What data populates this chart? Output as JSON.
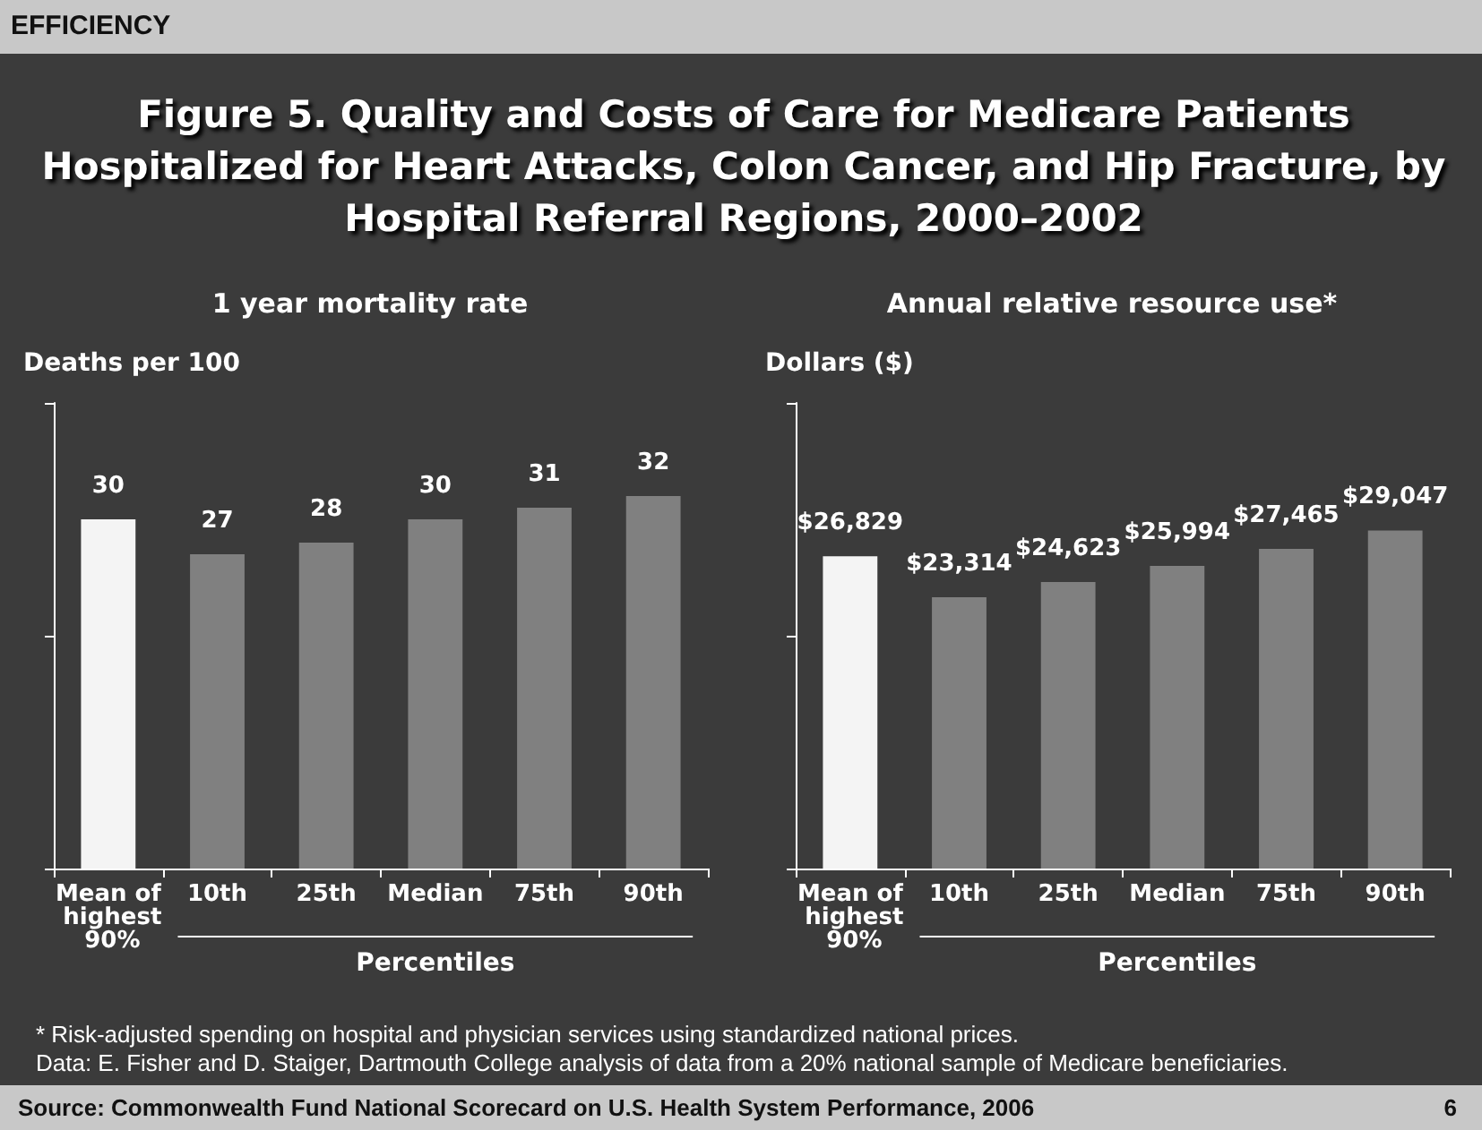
{
  "chart_data": [
    {
      "type": "bar",
      "title": "Figure 5. Quality and Costs of Care for Medicare Patients Hospitalized for Heart Attacks, Colon Cancer, and Hip Fracture, by Hospital Referral Regions, 2000–2002",
      "subtitle": "1 year mortality rate",
      "ylabel": "Deaths per 100",
      "xlabel": "Percentiles",
      "categories": [
        "Mean of highest 90%",
        "10th",
        "25th",
        "Median",
        "75th",
        "90th"
      ],
      "values": [
        30,
        27,
        28,
        30,
        31,
        32
      ],
      "colors": [
        "#f4f4f4",
        "#808080",
        "#808080",
        "#808080",
        "#808080",
        "#808080"
      ],
      "ylim": [
        0,
        40
      ],
      "yticks": [
        {
          "value": 0,
          "label": null
        },
        {
          "value": 20,
          "label": null
        },
        {
          "value": 40,
          "label": null
        }
      ],
      "tick_labels": "x",
      "grid": false,
      "data_labels": true,
      "annotations": [
        "EFFICIENCY",
        "* Risk-adjusted spending on hospital and physician services using standardized national prices.",
        "Data: E. Fisher and D. Staiger, Dartmouth College analysis of data from a 20% national sample of Medicare beneficiaries.",
        "Source: Commonwealth Fund National Scorecard on U.S. Health System Performance, 2006",
        "6"
      ]
    },
    {
      "type": "bar",
      "title": "Annual relative resource use*",
      "ylabel": "Dollars ($)",
      "xlabel": "Percentiles",
      "categories": [
        "Mean of highest 90%",
        "10th",
        "25th",
        "Median",
        "75th",
        "90th"
      ],
      "values": [
        26829,
        23314,
        24623,
        25994,
        27465,
        29047
      ],
      "value_labels": [
        "$26,829",
        "$23,314",
        "$24,623",
        "$25,994",
        "$27,465",
        "$29,047"
      ],
      "colors": [
        "#f4f4f4",
        "#808080",
        "#808080",
        "#808080",
        "#808080",
        "#808080"
      ],
      "ylim": [
        0,
        40000
      ],
      "yticks": [
        {
          "value": 0,
          "label": null
        },
        {
          "value": 20000,
          "label": null
        },
        {
          "value": 40000,
          "label": null
        }
      ],
      "tick_labels": "x",
      "grid": false
    }
  ]
}
